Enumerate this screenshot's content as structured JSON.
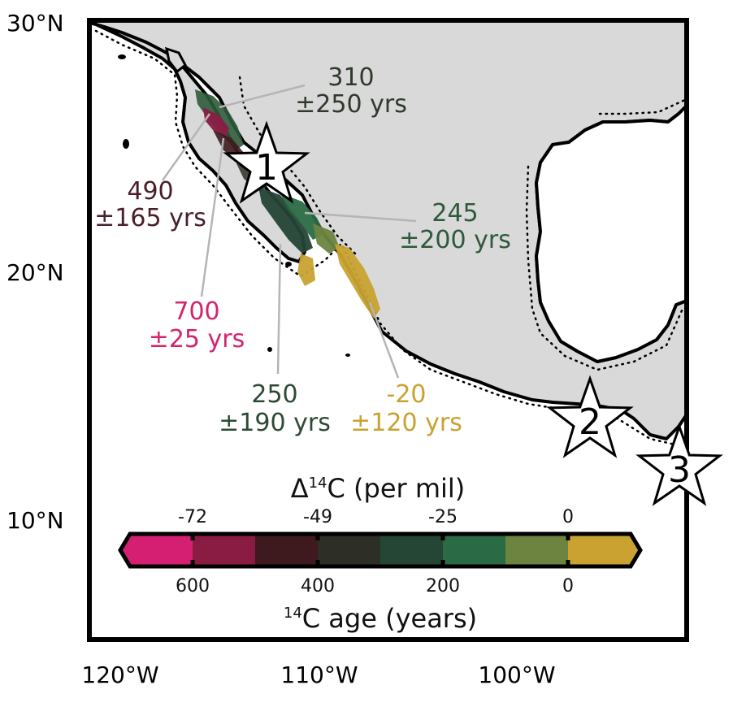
{
  "axes": {
    "lat_labels": [
      "30°N",
      "20°N",
      "10°N"
    ],
    "lon_labels": [
      "120°W",
      "110°W",
      "100°W"
    ]
  },
  "sites": [
    {
      "label": "1"
    },
    {
      "label": "2"
    },
    {
      "label": "3"
    }
  ],
  "annotations": [
    {
      "value": "310",
      "uncertainty": "±250 yrs",
      "color": "#2f3a2c"
    },
    {
      "value": "490",
      "uncertainty": "±165 yrs",
      "color": "#4a1f2a"
    },
    {
      "value": "245",
      "uncertainty": "±200 yrs",
      "color": "#2d5a3a"
    },
    {
      "value": "700",
      "uncertainty": "±25 yrs",
      "color": "#d4246e"
    },
    {
      "value": "250",
      "uncertainty": "±190 yrs",
      "color": "#2d4a35"
    },
    {
      "value": "-20",
      "uncertainty": "±120 yrs",
      "color": "#c9a232"
    }
  ],
  "colorbar": {
    "top_title_prefix": "Δ",
    "top_title_sup": "14",
    "top_title_suffix": "C (per mil)",
    "top_ticks": [
      "-72",
      "-49",
      "-25",
      "0"
    ],
    "bottom_ticks": [
      "600",
      "400",
      "200",
      "0"
    ],
    "bottom_title_sup": "14",
    "bottom_title_suffix": "C age (years)",
    "colors": [
      "#d41f72",
      "#8a1c44",
      "#3e1a1f",
      "#2d2e26",
      "#254535",
      "#2a6a45",
      "#6d8440",
      "#c9a232"
    ]
  },
  "legend_colors": {
    "land": "#d9d9d9",
    "ocean": "#ffffff",
    "leader": "#b5b5b5"
  }
}
